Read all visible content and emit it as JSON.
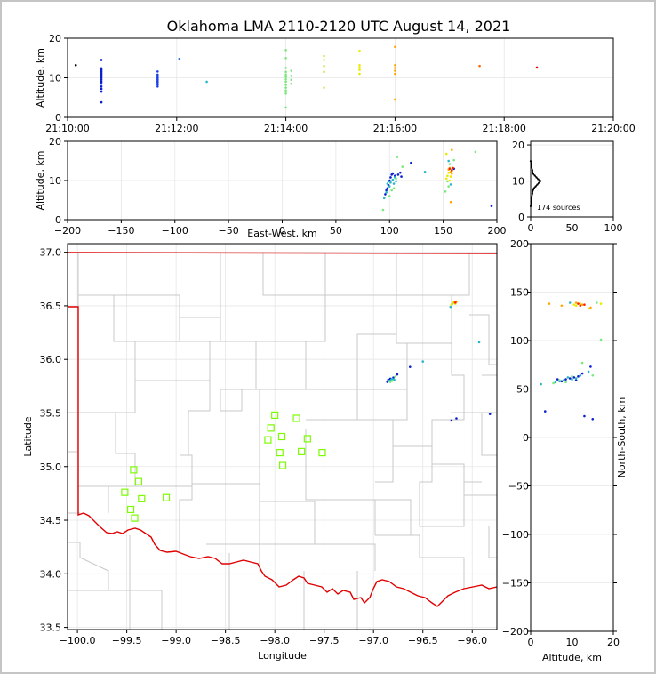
{
  "figure": {
    "title": "Oklahoma LMA 2110-2120 UTC August 14, 2021",
    "source_count_label": "174 sources"
  },
  "chart_data": [
    {
      "id": "time-altitude",
      "type": "scatter",
      "xlabel": "",
      "ylabel": "Altitude, km",
      "x_ticks": [
        "21:10:00",
        "21:12:00",
        "21:14:00",
        "21:16:00",
        "21:18:00",
        "21:20:00"
      ],
      "y_ticks": [
        "0",
        "10",
        "20"
      ],
      "xlim_minutes": [
        0,
        10
      ],
      "ylim": [
        0,
        20
      ],
      "grid": true,
      "x_unit": "minutes after 21:10:00 UTC",
      "series": [
        {
          "color": "#000000",
          "points": [
            [
              0.15,
              13.2
            ]
          ]
        },
        {
          "color": "#0a1fd0",
          "points": [
            [
              0.62,
              3.8
            ],
            [
              0.62,
              6.5
            ],
            [
              0.62,
              7.2
            ],
            [
              0.62,
              7.8
            ],
            [
              0.62,
              8.5
            ],
            [
              0.62,
              9.0
            ],
            [
              0.62,
              9.5
            ],
            [
              0.62,
              10.0
            ],
            [
              0.62,
              10.4
            ],
            [
              0.62,
              10.8
            ],
            [
              0.62,
              11.2
            ],
            [
              0.62,
              11.6
            ],
            [
              0.62,
              12.0
            ],
            [
              0.62,
              12.4
            ],
            [
              0.62,
              14.5
            ]
          ]
        },
        {
          "color": "#1b3ee6",
          "points": [
            [
              1.65,
              7.8
            ],
            [
              1.65,
              8.3
            ],
            [
              1.65,
              8.8
            ],
            [
              1.65,
              9.2
            ],
            [
              1.65,
              9.6
            ],
            [
              1.65,
              10.0
            ],
            [
              1.65,
              10.4
            ],
            [
              1.65,
              10.8
            ],
            [
              1.65,
              11.6
            ]
          ]
        },
        {
          "color": "#1f7ad8",
          "points": [
            [
              2.05,
              14.8
            ]
          ]
        },
        {
          "color": "#29b6c9",
          "points": [
            [
              2.55,
              9.0
            ]
          ]
        },
        {
          "color": "#7be87b",
          "points": [
            [
              4.0,
              2.5
            ],
            [
              4.0,
              6.0
            ],
            [
              4.0,
              6.8
            ],
            [
              4.0,
              7.5
            ],
            [
              4.0,
              8.2
            ],
            [
              4.0,
              9.0
            ],
            [
              4.0,
              9.6
            ],
            [
              4.0,
              10.2
            ],
            [
              4.0,
              10.8
            ],
            [
              4.0,
              11.5
            ],
            [
              4.0,
              12.5
            ],
            [
              4.0,
              15.0
            ],
            [
              4.0,
              17.0
            ],
            [
              4.1,
              8.5
            ],
            [
              4.1,
              9.5
            ],
            [
              4.1,
              10.5
            ],
            [
              4.1,
              11.8
            ]
          ]
        },
        {
          "color": "#c8ea50",
          "points": [
            [
              4.7,
              7.5
            ],
            [
              4.7,
              11.5
            ],
            [
              4.7,
              13.0
            ],
            [
              4.7,
              14.5
            ],
            [
              4.7,
              15.5
            ]
          ]
        },
        {
          "color": "#eaea00",
          "points": [
            [
              5.35,
              11.0
            ],
            [
              5.35,
              12.0
            ],
            [
              5.35,
              12.6
            ],
            [
              5.35,
              13.2
            ],
            [
              5.35,
              16.8
            ]
          ]
        },
        {
          "color": "#ffa800",
          "points": [
            [
              6.0,
              4.5
            ],
            [
              6.0,
              11.0
            ],
            [
              6.0,
              11.8
            ],
            [
              6.0,
              12.5
            ],
            [
              6.0,
              13.2
            ],
            [
              6.0,
              17.8
            ]
          ]
        },
        {
          "color": "#ff6600",
          "points": [
            [
              7.55,
              13.0
            ]
          ]
        },
        {
          "color": "#e00000",
          "points": [
            [
              8.6,
              12.6
            ]
          ]
        }
      ]
    },
    {
      "id": "eastwest-altitude",
      "type": "scatter",
      "xlabel": "East-West, km",
      "ylabel": "Altitude, km",
      "x_ticks": [
        "−200",
        "−150",
        "−100",
        "−50",
        "0",
        "50",
        "100",
        "150",
        "200"
      ],
      "y_ticks": [
        "0",
        "10",
        "20"
      ],
      "xlim": [
        -200,
        200
      ],
      "ylim": [
        0,
        20
      ],
      "grid": true,
      "series": [
        {
          "color": "#0a1fd0",
          "points": [
            [
              96,
              6.5
            ],
            [
              97,
              7.5
            ],
            [
              98,
              8.0
            ],
            [
              99,
              8.8
            ],
            [
              100,
              10.0
            ],
            [
              101,
              10.8
            ],
            [
              102,
              11.5
            ],
            [
              103,
              11.8
            ],
            [
              105,
              11.2
            ],
            [
              108,
              11.5
            ],
            [
              110,
              12.0
            ],
            [
              111,
              11.0
            ],
            [
              120,
              14.5
            ],
            [
              160,
              13.0
            ],
            [
              195,
              3.5
            ]
          ]
        },
        {
          "color": "#29b6c9",
          "points": [
            [
              95,
              5.5
            ],
            [
              97,
              7.0
            ],
            [
              98,
              9.2
            ],
            [
              99,
              9.8
            ],
            [
              100,
              8.5
            ],
            [
              101,
              9.5
            ],
            [
              103,
              10.2
            ],
            [
              104,
              9.2
            ],
            [
              105,
              10.8
            ],
            [
              106,
              9.8
            ],
            [
              133,
              12.2
            ],
            [
              155,
              15.0
            ],
            [
              157,
              9.0
            ]
          ]
        },
        {
          "color": "#7be87b",
          "points": [
            [
              94,
              2.5
            ],
            [
              100,
              6.0
            ],
            [
              102,
              7.5
            ],
            [
              104,
              8.0
            ],
            [
              106,
              10.5
            ],
            [
              107,
              16.0
            ],
            [
              112,
              13.5
            ],
            [
              152,
              7.2
            ],
            [
              154,
              9.8
            ],
            [
              155,
              8.5
            ],
            [
              156,
              14.2
            ],
            [
              158,
              12.8
            ],
            [
              160,
              15.2
            ],
            [
              180,
              17.3
            ]
          ]
        },
        {
          "color": "#eaea00",
          "points": [
            [
              153,
              10.5
            ],
            [
              154,
              11.2
            ],
            [
              155,
              12.0
            ],
            [
              156,
              10.0
            ],
            [
              157,
              11.0
            ],
            [
              158,
              12.5
            ],
            [
              153,
              16.8
            ]
          ]
        },
        {
          "color": "#ffa800",
          "points": [
            [
              155,
              12.8
            ],
            [
              156,
              13.2
            ],
            [
              157,
              12.2
            ],
            [
              158,
              11.8
            ],
            [
              157,
              4.5
            ],
            [
              158,
              17.8
            ]
          ]
        },
        {
          "color": "#ff2000",
          "points": [
            [
              156,
              13.0
            ],
            [
              158,
              12.6
            ],
            [
              159,
              13.2
            ]
          ]
        }
      ]
    },
    {
      "id": "altitude-histogram",
      "type": "line",
      "xlabel": "",
      "ylabel": "",
      "x_ticks": [
        "0",
        "50",
        "100"
      ],
      "y_ticks": [
        "0",
        "10",
        "20"
      ],
      "xlim": [
        0,
        100
      ],
      "ylim": [
        0,
        21
      ],
      "grid": true,
      "series": [
        {
          "color": "#000000",
          "points": [
            [
              0,
              3
            ],
            [
              1,
              5
            ],
            [
              2,
              6.5
            ],
            [
              3,
              7.5
            ],
            [
              4,
              8
            ],
            [
              6,
              8.5
            ],
            [
              8,
              9
            ],
            [
              10,
              9.5
            ],
            [
              12,
              10
            ],
            [
              9,
              10.5
            ],
            [
              7,
              11
            ],
            [
              5,
              11.5
            ],
            [
              3,
              12
            ],
            [
              2,
              13
            ],
            [
              1,
              14
            ],
            [
              0,
              15.5
            ]
          ]
        }
      ]
    },
    {
      "id": "plan-view-map",
      "type": "scatter",
      "xlabel": "Longitude",
      "ylabel": "Latitude",
      "x_ticks": [
        "−100.0",
        "−99.5",
        "−99.0",
        "−98.5",
        "−98.0",
        "−97.5",
        "−97.0",
        "−96.5",
        "−96.0"
      ],
      "y_ticks": [
        "33.5",
        "34.0",
        "34.5",
        "35.0",
        "35.5",
        "36.0",
        "36.5",
        "37.0"
      ],
      "xlim": [
        -100.1,
        -95.75
      ],
      "ylim": [
        33.48,
        37.08
      ],
      "grid": true,
      "boundary_color": "#e00000",
      "county_color": "#c8c8c8",
      "station_color": "#7cfc00",
      "stations": [
        [
          -99.52,
          34.76
        ],
        [
          -99.46,
          34.6
        ],
        [
          -99.43,
          34.97
        ],
        [
          -99.42,
          34.52
        ],
        [
          -99.38,
          34.86
        ],
        [
          -99.35,
          34.7
        ],
        [
          -99.1,
          34.71
        ],
        [
          -98.07,
          35.25
        ],
        [
          -98.04,
          35.36
        ],
        [
          -98.0,
          35.48
        ],
        [
          -97.95,
          35.13
        ],
        [
          -97.93,
          35.28
        ],
        [
          -97.92,
          35.01
        ],
        [
          -97.78,
          35.45
        ],
        [
          -97.73,
          35.14
        ],
        [
          -97.67,
          35.26
        ],
        [
          -97.52,
          35.13
        ]
      ],
      "series": [
        {
          "color": "#0a1fd0",
          "points": [
            [
              -96.86,
              35.79
            ],
            [
              -96.85,
              35.81
            ],
            [
              -96.83,
              35.82
            ],
            [
              -96.8,
              35.83
            ],
            [
              -96.76,
              35.86
            ],
            [
              -96.63,
              35.93
            ],
            [
              -96.16,
              35.45
            ],
            [
              -96.21,
              35.43
            ],
            [
              -95.82,
              35.49
            ]
          ]
        },
        {
          "color": "#29b6c9",
          "points": [
            [
              -96.84,
              35.8
            ],
            [
              -96.82,
              35.81
            ],
            [
              -96.81,
              35.82
            ],
            [
              -96.79,
              35.81
            ],
            [
              -96.5,
              35.98
            ],
            [
              -96.22,
              36.49
            ],
            [
              -95.93,
              36.16
            ]
          ]
        },
        {
          "color": "#7be87b",
          "points": [
            [
              -96.83,
              35.79
            ],
            [
              -96.81,
              35.8
            ],
            [
              -96.78,
              35.84
            ],
            [
              -96.2,
              36.52
            ]
          ]
        },
        {
          "color": "#eaea00",
          "points": [
            [
              -96.21,
              36.51
            ],
            [
              -96.19,
              36.53
            ],
            [
              -96.17,
              36.52
            ]
          ]
        },
        {
          "color": "#ffa800",
          "points": [
            [
              -96.18,
              36.53
            ],
            [
              -96.16,
              36.54
            ]
          ]
        },
        {
          "color": "#ff2000",
          "points": [
            [
              -96.17,
              36.53
            ]
          ]
        }
      ]
    },
    {
      "id": "altitude-northsouth",
      "type": "scatter",
      "xlabel": "Altitude, km",
      "ylabel": "North-South, km",
      "x_ticks": [
        "0",
        "10",
        "20"
      ],
      "y_ticks": [
        "−200",
        "−150",
        "−100",
        "−50",
        "0",
        "50",
        "100",
        "150",
        "200"
      ],
      "xlim": [
        0,
        20
      ],
      "ylim": [
        -200,
        200
      ],
      "grid": true,
      "series": [
        {
          "color": "#0a1fd0",
          "points": [
            [
              3.5,
              27
            ],
            [
              6.5,
              60
            ],
            [
              7.5,
              58
            ],
            [
              8.5,
              60
            ],
            [
              9.5,
              61
            ],
            [
              10.5,
              62
            ],
            [
              11.0,
              59
            ],
            [
              11.5,
              63
            ],
            [
              12.5,
              66
            ],
            [
              13.0,
              22
            ],
            [
              14.5,
              73
            ],
            [
              15.0,
              19
            ]
          ]
        },
        {
          "color": "#29b6c9",
          "points": [
            [
              2.5,
              55
            ],
            [
              6.0,
              57
            ],
            [
              7.0,
              58
            ],
            [
              8.0,
              59
            ],
            [
              9.0,
              62
            ],
            [
              9.5,
              139
            ],
            [
              10.0,
              60
            ],
            [
              11.0,
              61
            ],
            [
              12.0,
              64
            ],
            [
              14.0,
              68
            ]
          ]
        },
        {
          "color": "#7be87b",
          "points": [
            [
              5.5,
              56
            ],
            [
              7.0,
              59
            ],
            [
              8.5,
              57
            ],
            [
              10.0,
              63
            ],
            [
              12.5,
              77
            ],
            [
              15.0,
              64
            ],
            [
              16.0,
              139
            ],
            [
              17.0,
              101
            ]
          ]
        },
        {
          "color": "#eaea00",
          "points": [
            [
              10.5,
              137
            ],
            [
              11.0,
              136
            ],
            [
              12.0,
              138
            ],
            [
              14.0,
              133
            ],
            [
              17.0,
              138
            ]
          ]
        },
        {
          "color": "#ffa800",
          "points": [
            [
              4.5,
              138
            ],
            [
              7.5,
              136
            ],
            [
              11.0,
              139
            ],
            [
              12.5,
              137
            ],
            [
              14.5,
              134
            ]
          ]
        },
        {
          "color": "#ff2000",
          "points": [
            [
              11.5,
              138
            ],
            [
              12.0,
              136
            ],
            [
              13.0,
              137
            ]
          ]
        }
      ]
    }
  ]
}
